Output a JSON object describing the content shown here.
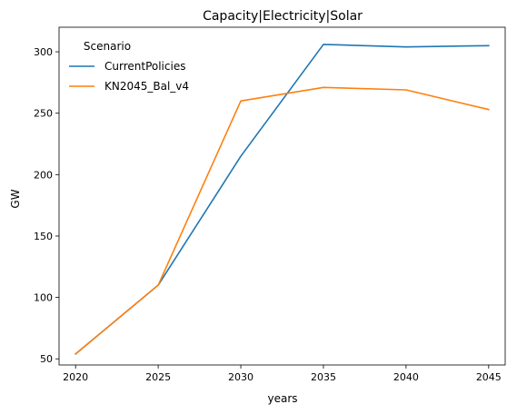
{
  "chart_data": {
    "type": "line",
    "title": "Capacity|Electricity|Solar",
    "xlabel": "years",
    "ylabel": "GW",
    "x": [
      2020,
      2025,
      2030,
      2035,
      2040,
      2045
    ],
    "xlim": [
      2019,
      2046
    ],
    "ylim": [
      45,
      320
    ],
    "xticks": [
      2020,
      2025,
      2030,
      2035,
      2040,
      2045
    ],
    "yticks": [
      50,
      100,
      150,
      200,
      250,
      300
    ],
    "grid": false,
    "legend": {
      "title": "Scenario",
      "placement": "upper-left",
      "frame": false
    },
    "series": [
      {
        "name": "CurrentPolicies",
        "color": "#1f77b4",
        "values": [
          54,
          110,
          215,
          306,
          304,
          305
        ]
      },
      {
        "name": "KN2045_Bal_v4",
        "color": "#ff7f0e",
        "values": [
          54,
          110,
          260,
          271,
          269,
          253
        ]
      }
    ]
  }
}
